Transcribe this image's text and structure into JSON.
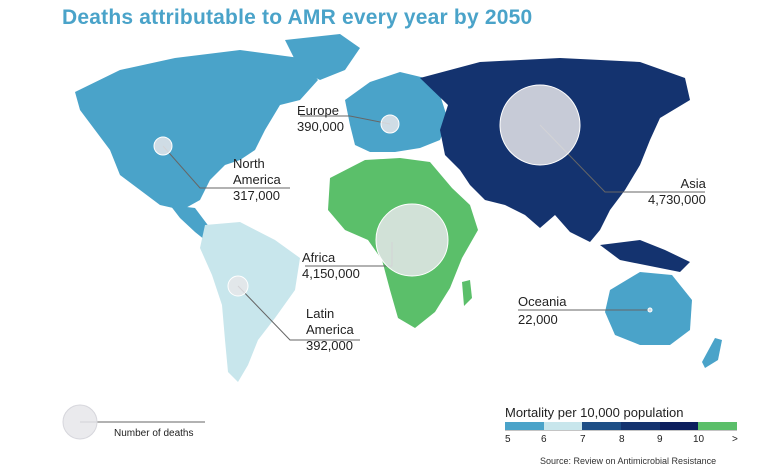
{
  "title": "Deaths attributable to AMR every year by 2050",
  "regions": [
    {
      "id": "europe",
      "name": "Europe",
      "deaths": "390,000"
    },
    {
      "id": "north-america",
      "name": "North\nAmerica",
      "deaths": "317,000"
    },
    {
      "id": "asia",
      "name": "Asia",
      "deaths": "4,730,000"
    },
    {
      "id": "africa",
      "name": "Africa",
      "deaths": "4,150,000"
    },
    {
      "id": "oceania",
      "name": "Oceania",
      "deaths": "22,000"
    },
    {
      "id": "latin-america",
      "name": "Latin\nAmerica",
      "deaths": "392,000"
    }
  ],
  "bubble_legend": {
    "label": "Number of deaths"
  },
  "mortality_legend": {
    "title": "Mortality per 10,000 population",
    "ticks": [
      "5",
      "6",
      "7",
      "8",
      "9",
      "10",
      ">"
    ],
    "colors": [
      "#4aa3c9",
      "#c8e6ec",
      "#1d4e86",
      "#14336f",
      "#0c1f5e",
      "#5bbf6a"
    ]
  },
  "source": "Source: Review on Antimicrobial Resistance",
  "colors": {
    "north_america": "#4aa3c9",
    "latin_america": "#c8e6ec",
    "europe": "#4aa3c9",
    "asia": "#14336f",
    "africa": "#5bbf6a",
    "oceania": "#4aa3c9",
    "bubble": "#e6e6ea"
  }
}
